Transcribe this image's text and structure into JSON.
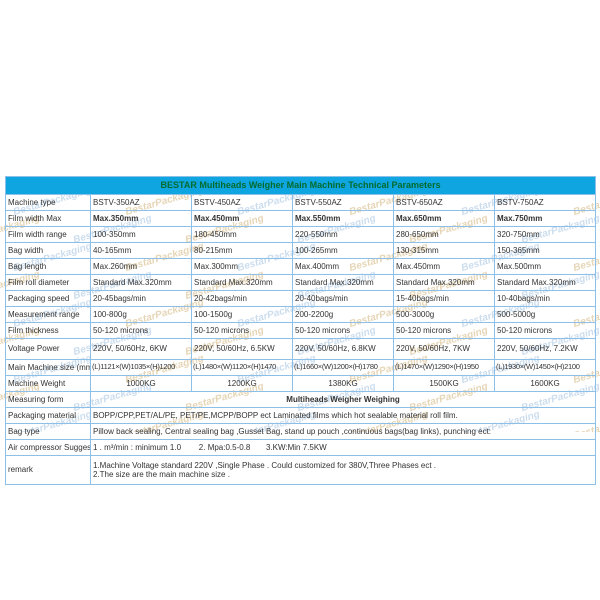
{
  "title": "BESTAR Multiheads Weigher Main Machine Technical Parameters",
  "watermark_text": "BestarPackaging",
  "colors": {
    "header_bg": "#0ea5e0",
    "header_text": "#046b2d",
    "border": "#8cc0e8",
    "watermark_tan": "#c8a45f",
    "watermark_blue": "#8fb4da"
  },
  "table": {
    "rows": [
      {
        "label": "Machine type",
        "values": [
          "BSTV-350AZ",
          "BSTV-450AZ",
          "BSTV-550AZ",
          "BSTV-650AZ",
          "BSTV-750AZ"
        ]
      },
      {
        "label": "Film width Max",
        "values": [
          "Max.350mm",
          "Max.450mm",
          "Max.550mm",
          "Max.650mm",
          "Max.750mm"
        ],
        "bold": true
      },
      {
        "label": "Film width range",
        "values": [
          "100-350mm",
          "180-450mm",
          "220-550mm",
          "280-650mm",
          "320-750mm"
        ]
      },
      {
        "label": "Bag width",
        "values": [
          "40-165mm",
          "80-215mm",
          "100-265mm",
          "130-315mm",
          "150-365mm"
        ]
      },
      {
        "label": "Bag length",
        "values": [
          "Max.260mm",
          "Max.300mm",
          "Max.400mm",
          "Max.450mm",
          "Max.500mm"
        ]
      },
      {
        "label": "Film roll diameter",
        "values": [
          "Standard Max.320mm",
          "Standard Max.320mm",
          "Standard Max.320mm",
          "Standard Max.320mm",
          "Standard Max.320mm"
        ]
      },
      {
        "label": "Packaging speed",
        "values": [
          "20-45bags/min",
          "20-42bags/min",
          "20-40bags/min",
          "15-40bags/min",
          "10-40bags/min"
        ]
      },
      {
        "label": "Measurement range",
        "values": [
          "100-800g",
          "100-1500g",
          "200-2200g",
          "500-3000g",
          "500-5000g"
        ]
      },
      {
        "label": "Film thickness",
        "values": [
          "50-120 microns",
          "50-120 microns",
          "50-120 microns",
          "50-120 microns",
          "50-120 microns"
        ]
      },
      {
        "label": "Voltage Power",
        "values": [
          "220V, 50/60Hz, 6KW",
          "220V, 50/60Hz, 6.5KW",
          "220V, 50/60Hz, 6.8KW",
          "220V, 50/60Hz, 7KW",
          "220V, 50/60Hz, 7.2KW"
        ],
        "tall": true
      },
      {
        "label": "Main Machine size (mm)",
        "values": [
          "(L)1121×(W)1035×(H)1200",
          "(L)1480×(W)1120×(H)1470",
          "(L)1660×(W)1200×(H)1780",
          "(L)1470×(W)1290×(H)1950",
          "(L)1930×(W)1450×(H)2100"
        ],
        "small": true
      },
      {
        "label": "Machine Weight",
        "values": [
          "1000KG",
          "1200KG",
          "1380KG",
          "1500KG",
          "1600KG"
        ],
        "center": true
      },
      {
        "label": "Measuring form",
        "span": "Multiheads Weigher Weighing",
        "bold": true,
        "center": true
      },
      {
        "label": "Packaging material",
        "span": "BOPP/CPP,PET/AL/PE, PET/PE,MCPP/BOPP ect Laminated films which hot sealable material roll film."
      },
      {
        "label": "Bag type",
        "span": "Pillow back sealing, Central sealing bag ,Gusset Bag, stand up pouch ,continuous bags(bag links), punching ect:"
      },
      {
        "label": "Air compressor Suggest",
        "span": "1 . m³/min : minimum 1.0        2. Mpa:0.5-0.8       3.KW:Min 7.5KW"
      },
      {
        "label": "remark",
        "lines": [
          "1.Machine Voltage standard 220V ,Single Phase . Could customized for 380V,Three Phases ect .",
          "2.The size are the main machine size ."
        ],
        "remark": true
      }
    ]
  }
}
